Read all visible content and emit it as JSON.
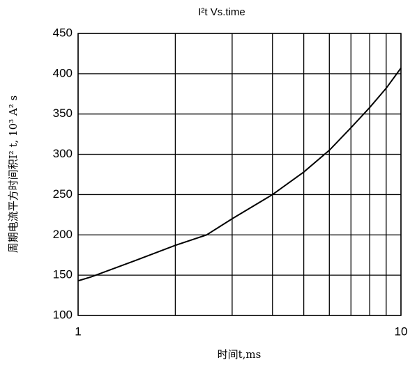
{
  "chart_data": {
    "type": "line",
    "title": "I²t  Vs.time",
    "x_label": "时间t,ms",
    "y_label": "周期电流平方时间积I² t, 10³ A² s",
    "x": [
      1,
      1.1,
      1.5,
      2,
      2.5,
      3,
      4,
      5,
      6,
      7,
      8,
      9,
      10
    ],
    "series": [
      {
        "name": "I²t",
        "color": "#000000",
        "values": [
          143,
          148,
          168,
          187,
          200,
          220,
          250,
          278,
          305,
          333,
          358,
          382,
          407
        ]
      }
    ],
    "xlog": true,
    "xlim": [
      1,
      10
    ],
    "xticks": [
      1,
      10
    ],
    "xminor": [
      2,
      3,
      4,
      5,
      6,
      7,
      8,
      9
    ],
    "ylim": [
      100,
      450
    ],
    "yticks": [
      100,
      150,
      200,
      250,
      300,
      350,
      400,
      450
    ],
    "grid": true
  }
}
